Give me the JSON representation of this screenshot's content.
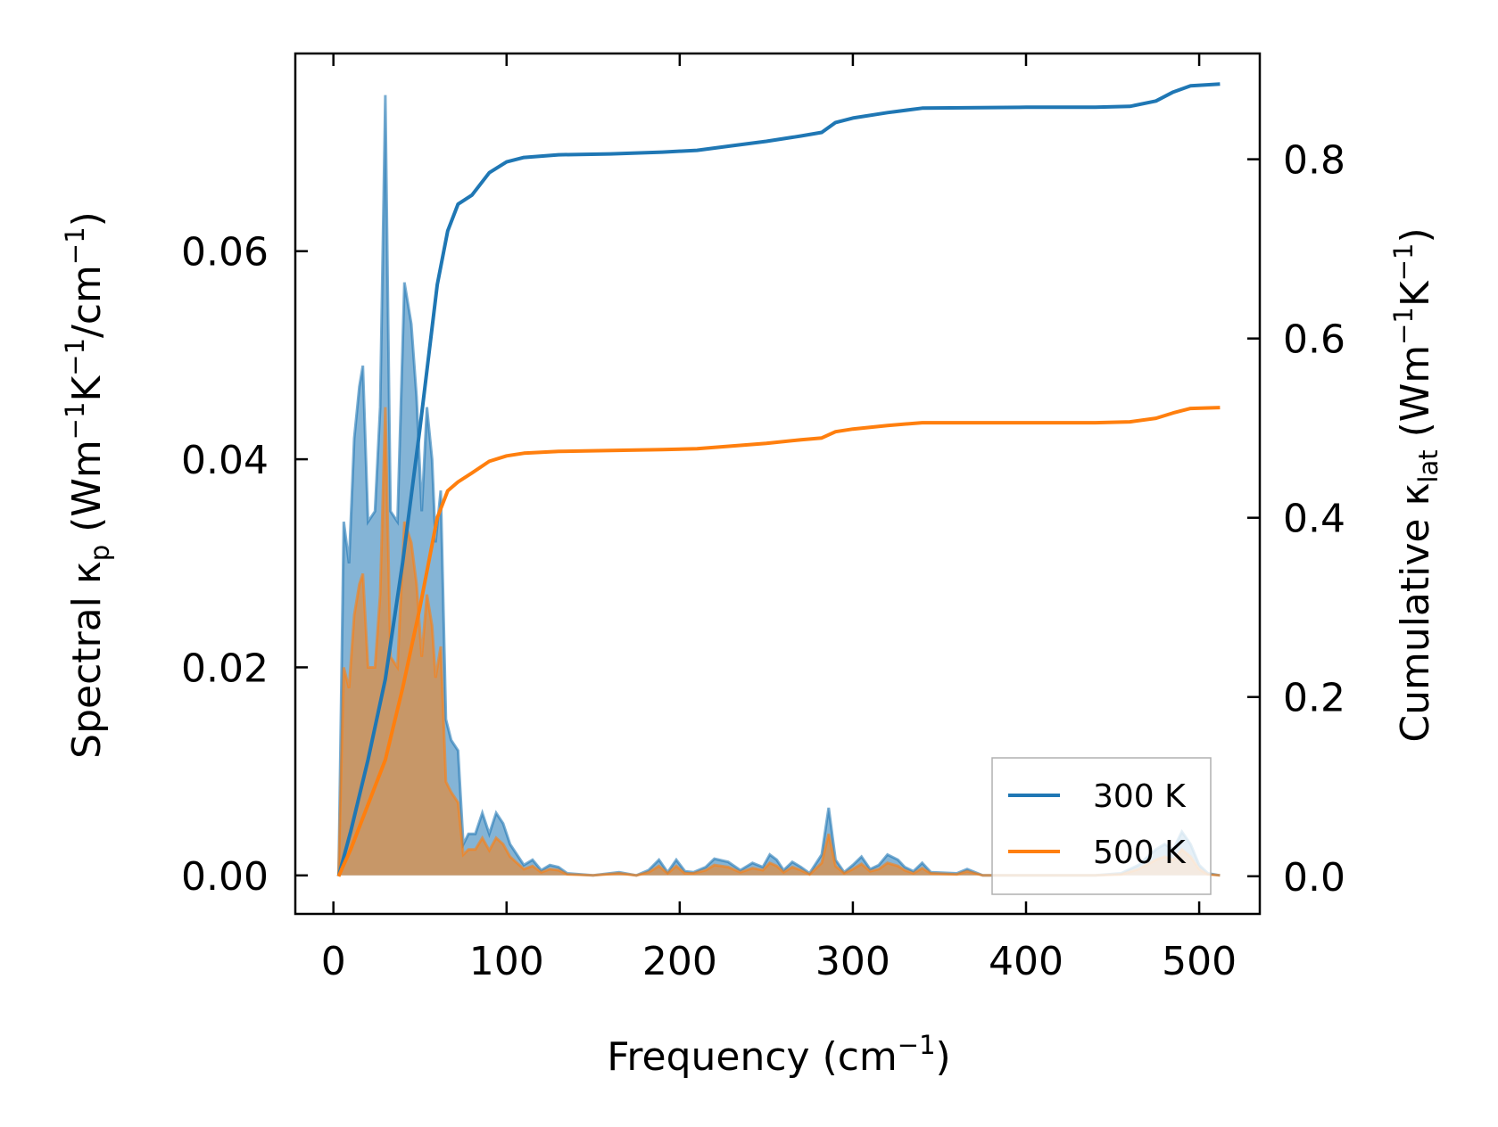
{
  "chart_data": {
    "type": "area",
    "xlabel": {
      "main": "Frequency (cm",
      "sup": "−1",
      "end": ")"
    },
    "ylabel_left": {
      "p1": "Spectral κ",
      "sub1": "p",
      "p2": " (Wm",
      "sup1": "−1",
      "p3": "K",
      "sup2": "−1",
      "p4": "/cm",
      "sup3": "−1",
      "p5": ")"
    },
    "ylabel_right": {
      "p1": "Cumulative κ",
      "sub1": "lat",
      "p2": " (Wm",
      "sup1": "−1",
      "p3": "K",
      "sup2": "−1",
      "p4": ")"
    },
    "xlim": [
      -22,
      535
    ],
    "ylim_left": [
      -0.0037,
      0.079
    ],
    "ylim_right": [
      -0.042,
      0.918
    ],
    "xticks": [
      0,
      100,
      200,
      300,
      400,
      500
    ],
    "xtick_labels": [
      "0",
      "100",
      "200",
      "300",
      "400",
      "500"
    ],
    "yticks_left": [
      0.0,
      0.02,
      0.04,
      0.06
    ],
    "ytick_labels_left": [
      "0.00",
      "0.02",
      "0.04",
      "0.06"
    ],
    "yticks_right": [
      0.0,
      0.2,
      0.4,
      0.6,
      0.8
    ],
    "ytick_labels_right": [
      "0.0",
      "0.2",
      "0.4",
      "0.6",
      "0.8"
    ],
    "legend_position": "lower right",
    "grid": false,
    "series": [
      {
        "name": "300 K",
        "color": "#1f77b4",
        "spectral": [
          [
            3,
            0
          ],
          [
            6,
            0.034
          ],
          [
            9,
            0.03
          ],
          [
            12,
            0.042
          ],
          [
            15,
            0.047
          ],
          [
            17,
            0.049
          ],
          [
            20,
            0.034
          ],
          [
            24,
            0.035
          ],
          [
            27,
            0.045
          ],
          [
            30,
            0.075
          ],
          [
            33,
            0.035
          ],
          [
            37,
            0.034
          ],
          [
            41,
            0.057
          ],
          [
            45,
            0.053
          ],
          [
            48,
            0.046
          ],
          [
            51,
            0.035
          ],
          [
            54,
            0.045
          ],
          [
            57,
            0.04
          ],
          [
            59,
            0.032
          ],
          [
            62,
            0.037
          ],
          [
            65,
            0.015
          ],
          [
            68,
            0.013
          ],
          [
            72,
            0.012
          ],
          [
            75,
            0.003
          ],
          [
            78,
            0.004
          ],
          [
            82,
            0.004
          ],
          [
            86,
            0.006
          ],
          [
            90,
            0.004
          ],
          [
            94,
            0.006
          ],
          [
            98,
            0.005
          ],
          [
            102,
            0.003
          ],
          [
            106,
            0.002
          ],
          [
            110,
            0.001
          ],
          [
            115,
            0.0015
          ],
          [
            120,
            0.0005
          ],
          [
            125,
            0.001
          ],
          [
            130,
            0.0008
          ],
          [
            135,
            0.0002
          ],
          [
            150,
            0.0
          ],
          [
            165,
            0.0003
          ],
          [
            175,
            0.0
          ],
          [
            182,
            0.0005
          ],
          [
            188,
            0.0015
          ],
          [
            193,
            0.0003
          ],
          [
            198,
            0.0015
          ],
          [
            203,
            0.0004
          ],
          [
            208,
            0.0003
          ],
          [
            215,
            0.0008
          ],
          [
            220,
            0.0016
          ],
          [
            228,
            0.0013
          ],
          [
            235,
            0.0005
          ],
          [
            242,
            0.0012
          ],
          [
            248,
            0.0008
          ],
          [
            252,
            0.002
          ],
          [
            256,
            0.0015
          ],
          [
            260,
            0.0005
          ],
          [
            265,
            0.0013
          ],
          [
            270,
            0.0008
          ],
          [
            275,
            0.0002
          ],
          [
            282,
            0.002
          ],
          [
            286,
            0.0065
          ],
          [
            290,
            0.0015
          ],
          [
            295,
            0.0003
          ],
          [
            300,
            0.001
          ],
          [
            305,
            0.0018
          ],
          [
            310,
            0.0006
          ],
          [
            315,
            0.001
          ],
          [
            320,
            0.002
          ],
          [
            326,
            0.0015
          ],
          [
            330,
            0.0008
          ],
          [
            335,
            0.0004
          ],
          [
            340,
            0.0012
          ],
          [
            345,
            0.0003
          ],
          [
            360,
            0.0002
          ],
          [
            366,
            0.0006
          ],
          [
            375,
            0.0
          ],
          [
            440,
            0.0
          ],
          [
            455,
            0.0002
          ],
          [
            465,
            0.001
          ],
          [
            475,
            0.0025
          ],
          [
            480,
            0.003
          ],
          [
            485,
            0.0025
          ],
          [
            490,
            0.0042
          ],
          [
            495,
            0.003
          ],
          [
            500,
            0.001
          ],
          [
            505,
            0.0002
          ],
          [
            512,
            0.0
          ]
        ],
        "cumulative": [
          [
            3,
            0.0
          ],
          [
            10,
            0.05
          ],
          [
            20,
            0.13
          ],
          [
            30,
            0.22
          ],
          [
            40,
            0.35
          ],
          [
            50,
            0.5
          ],
          [
            60,
            0.66
          ],
          [
            66,
            0.72
          ],
          [
            72,
            0.75
          ],
          [
            80,
            0.76
          ],
          [
            90,
            0.785
          ],
          [
            100,
            0.797
          ],
          [
            110,
            0.802
          ],
          [
            130,
            0.805
          ],
          [
            160,
            0.806
          ],
          [
            190,
            0.808
          ],
          [
            210,
            0.81
          ],
          [
            230,
            0.815
          ],
          [
            250,
            0.82
          ],
          [
            270,
            0.826
          ],
          [
            282,
            0.83
          ],
          [
            290,
            0.841
          ],
          [
            300,
            0.846
          ],
          [
            320,
            0.852
          ],
          [
            340,
            0.857
          ],
          [
            400,
            0.858
          ],
          [
            440,
            0.858
          ],
          [
            460,
            0.859
          ],
          [
            475,
            0.865
          ],
          [
            485,
            0.875
          ],
          [
            495,
            0.882
          ],
          [
            512,
            0.884
          ]
        ]
      },
      {
        "name": "500 K",
        "color": "#ff7f0e",
        "spectral": [
          [
            3,
            0
          ],
          [
            6,
            0.02
          ],
          [
            9,
            0.018
          ],
          [
            12,
            0.025
          ],
          [
            15,
            0.028
          ],
          [
            17,
            0.029
          ],
          [
            20,
            0.02
          ],
          [
            24,
            0.02
          ],
          [
            27,
            0.027
          ],
          [
            30,
            0.045
          ],
          [
            33,
            0.021
          ],
          [
            37,
            0.02
          ],
          [
            41,
            0.034
          ],
          [
            45,
            0.032
          ],
          [
            48,
            0.028
          ],
          [
            51,
            0.021
          ],
          [
            54,
            0.027
          ],
          [
            57,
            0.024
          ],
          [
            59,
            0.019
          ],
          [
            62,
            0.022
          ],
          [
            65,
            0.009
          ],
          [
            68,
            0.008
          ],
          [
            72,
            0.007
          ],
          [
            75,
            0.002
          ],
          [
            78,
            0.0025
          ],
          [
            82,
            0.0025
          ],
          [
            86,
            0.0036
          ],
          [
            90,
            0.0024
          ],
          [
            94,
            0.0036
          ],
          [
            98,
            0.003
          ],
          [
            102,
            0.0018
          ],
          [
            106,
            0.0012
          ],
          [
            110,
            0.0006
          ],
          [
            115,
            0.0009
          ],
          [
            120,
            0.0003
          ],
          [
            125,
            0.0006
          ],
          [
            130,
            0.0005
          ],
          [
            135,
            0.0001
          ],
          [
            150,
            0.0
          ],
          [
            165,
            0.0002
          ],
          [
            175,
            0.0
          ],
          [
            182,
            0.0003
          ],
          [
            188,
            0.0009
          ],
          [
            193,
            0.0002
          ],
          [
            198,
            0.0009
          ],
          [
            203,
            0.0002
          ],
          [
            208,
            0.0002
          ],
          [
            215,
            0.0005
          ],
          [
            220,
            0.001
          ],
          [
            228,
            0.0008
          ],
          [
            235,
            0.0003
          ],
          [
            242,
            0.0007
          ],
          [
            248,
            0.0005
          ],
          [
            252,
            0.0012
          ],
          [
            256,
            0.0009
          ],
          [
            260,
            0.0003
          ],
          [
            265,
            0.0008
          ],
          [
            270,
            0.0005
          ],
          [
            275,
            0.0001
          ],
          [
            282,
            0.0012
          ],
          [
            286,
            0.004
          ],
          [
            290,
            0.0009
          ],
          [
            295,
            0.0002
          ],
          [
            300,
            0.0006
          ],
          [
            305,
            0.0011
          ],
          [
            310,
            0.0004
          ],
          [
            315,
            0.0006
          ],
          [
            320,
            0.0012
          ],
          [
            326,
            0.0009
          ],
          [
            330,
            0.0005
          ],
          [
            335,
            0.0002
          ],
          [
            340,
            0.0007
          ],
          [
            345,
            0.0002
          ],
          [
            360,
            0.0001
          ],
          [
            366,
            0.0004
          ],
          [
            375,
            0.0
          ],
          [
            440,
            0.0
          ],
          [
            455,
            0.0001
          ],
          [
            465,
            0.0006
          ],
          [
            475,
            0.0015
          ],
          [
            480,
            0.0018
          ],
          [
            485,
            0.0015
          ],
          [
            490,
            0.0025
          ],
          [
            495,
            0.0018
          ],
          [
            500,
            0.0006
          ],
          [
            505,
            0.0001
          ],
          [
            512,
            0.0
          ]
        ],
        "cumulative": [
          [
            3,
            0.0
          ],
          [
            10,
            0.03
          ],
          [
            20,
            0.08
          ],
          [
            30,
            0.13
          ],
          [
            40,
            0.21
          ],
          [
            50,
            0.3
          ],
          [
            60,
            0.4
          ],
          [
            66,
            0.43
          ],
          [
            72,
            0.44
          ],
          [
            80,
            0.45
          ],
          [
            90,
            0.463
          ],
          [
            100,
            0.469
          ],
          [
            110,
            0.472
          ],
          [
            130,
            0.474
          ],
          [
            160,
            0.475
          ],
          [
            190,
            0.476
          ],
          [
            210,
            0.477
          ],
          [
            230,
            0.48
          ],
          [
            250,
            0.483
          ],
          [
            270,
            0.487
          ],
          [
            282,
            0.489
          ],
          [
            290,
            0.496
          ],
          [
            300,
            0.499
          ],
          [
            320,
            0.503
          ],
          [
            340,
            0.506
          ],
          [
            400,
            0.506
          ],
          [
            440,
            0.506
          ],
          [
            460,
            0.507
          ],
          [
            475,
            0.511
          ],
          [
            485,
            0.517
          ],
          [
            495,
            0.522
          ],
          [
            512,
            0.523
          ]
        ]
      }
    ]
  }
}
